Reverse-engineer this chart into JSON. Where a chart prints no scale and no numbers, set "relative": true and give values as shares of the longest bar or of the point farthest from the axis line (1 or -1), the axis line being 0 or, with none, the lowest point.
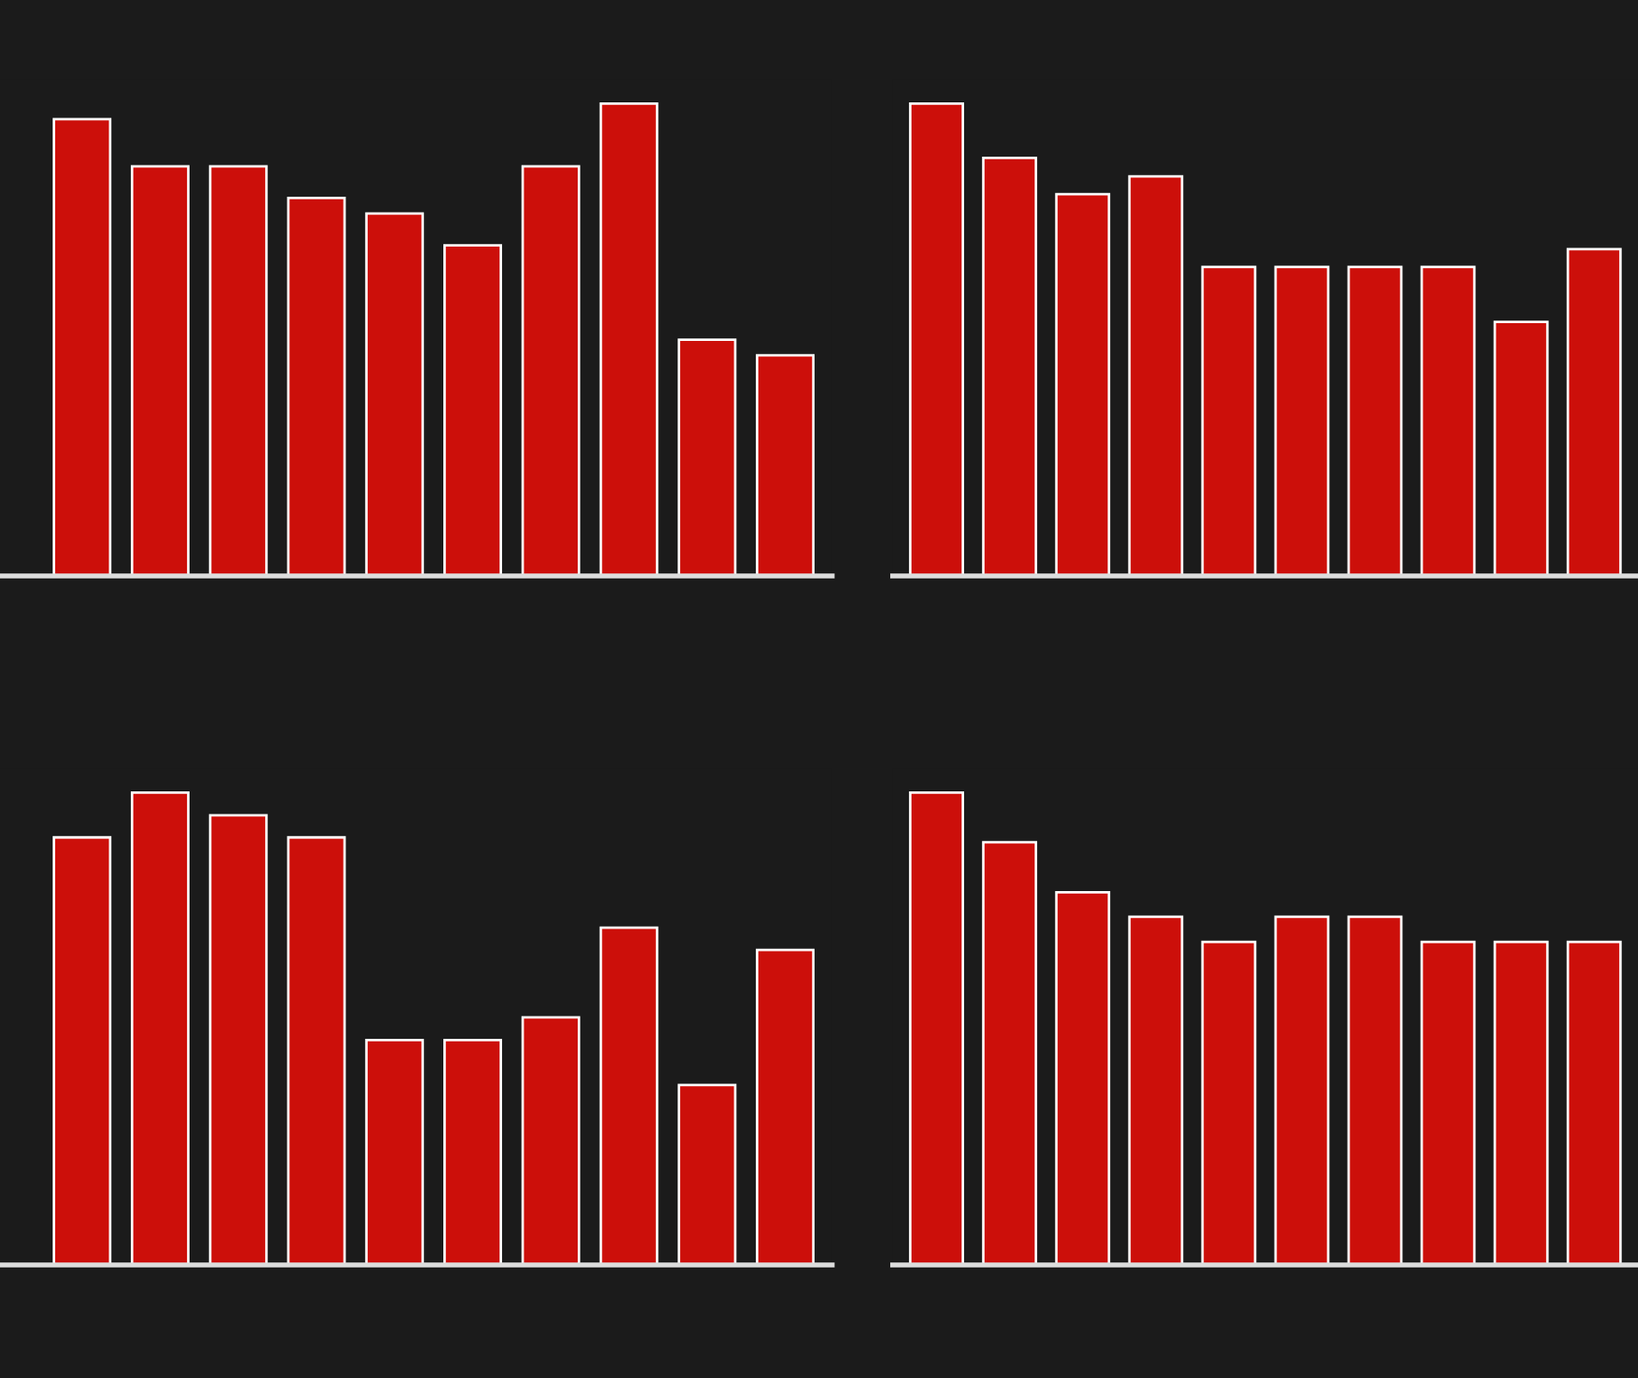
{
  "chart_data": [
    {
      "type": "bar",
      "relative": true,
      "categories": [
        null,
        null,
        null,
        null,
        null,
        null,
        null,
        null,
        null,
        null
      ],
      "values": [
        0.967,
        0.867,
        0.867,
        0.8,
        0.767,
        0.7,
        0.867,
        1,
        0.5,
        0.467
      ],
      "color": "#cc0f0a"
    },
    {
      "type": "bar",
      "relative": true,
      "categories": [
        null,
        null,
        null,
        null,
        null,
        null,
        null,
        null,
        null,
        null
      ],
      "values": [
        1,
        0.885,
        0.808,
        0.846,
        0.654,
        0.654,
        0.654,
        0.654,
        0.538,
        0.692
      ],
      "color": "#cc0f0a"
    },
    {
      "type": "bar",
      "relative": true,
      "categories": [
        null,
        null,
        null,
        null,
        null,
        null,
        null,
        null,
        null,
        null
      ],
      "values": [
        0.905,
        1,
        0.952,
        0.905,
        0.476,
        0.476,
        0.524,
        0.714,
        0.381,
        0.667
      ],
      "color": "#cc0f0a"
    },
    {
      "type": "bar",
      "relative": true,
      "categories": [
        null,
        null,
        null,
        null,
        null,
        null,
        null,
        null,
        null,
        null
      ],
      "values": [
        1,
        0.895,
        0.789,
        0.737,
        0.684,
        0.737,
        0.737,
        0.684,
        0.684,
        0.684
      ],
      "color": "#cc0f0a"
    }
  ]
}
